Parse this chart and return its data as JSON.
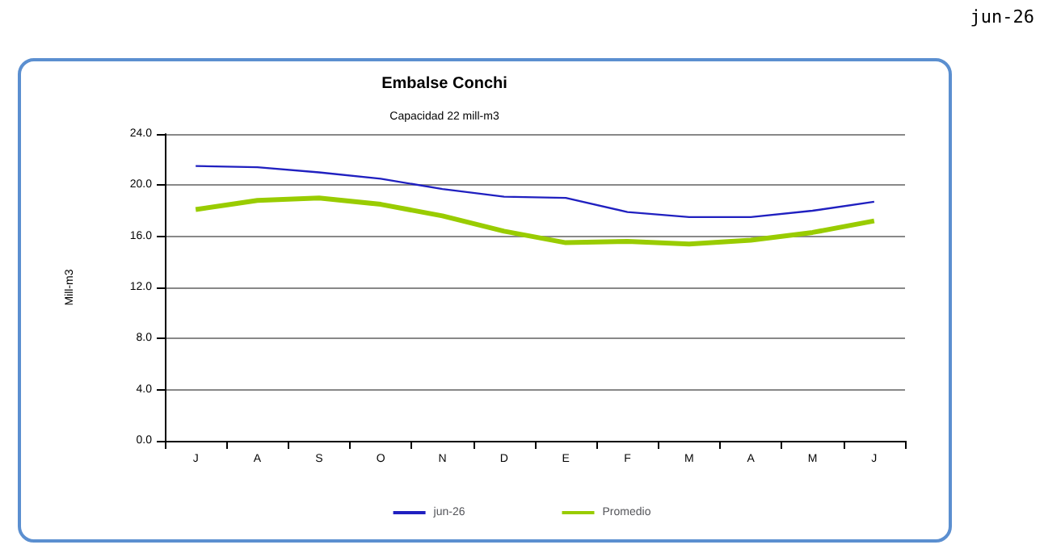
{
  "chart_data": {
    "type": "line",
    "title": "Embalse Conchi",
    "subtitle": "Capacidad 22 mill-m3",
    "ylabel": "Mill-m3",
    "annotations": [
      "jun-26"
    ],
    "categories": [
      "J",
      "A",
      "S",
      "O",
      "N",
      "D",
      "E",
      "F",
      "M",
      "A",
      "M",
      "J"
    ],
    "series": [
      {
        "name": "jun-26",
        "color": "#2020c0",
        "values": [
          21.5,
          21.4,
          21.0,
          20.5,
          19.7,
          19.1,
          19.0,
          17.9,
          17.5,
          17.5,
          18.0,
          18.7
        ]
      },
      {
        "name": "Promedio",
        "color": "#99cc00",
        "values": [
          18.1,
          18.8,
          19.0,
          18.5,
          17.6,
          16.4,
          15.5,
          15.6,
          15.4,
          15.7,
          16.3,
          17.2
        ]
      }
    ],
    "ylim": [
      0,
      24
    ],
    "yticks": [
      {
        "value": 0,
        "label": "0.0"
      },
      {
        "value": 4,
        "label": "4.0"
      },
      {
        "value": 8,
        "label": "8.0"
      },
      {
        "value": 12,
        "label": "12.0"
      },
      {
        "value": 16,
        "label": "16.0"
      },
      {
        "value": 20,
        "label": "20.0"
      },
      {
        "value": 24,
        "label": "24.0"
      }
    ],
    "grid": "y",
    "legend": "bottom",
    "marker": "none",
    "line_style": "solid"
  }
}
